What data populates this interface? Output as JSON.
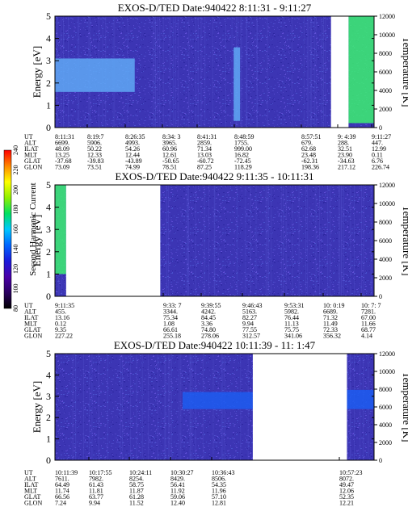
{
  "chart_data": [
    {
      "type": "heatmap",
      "title": "EXOS-D/TED   Date:940422   8:11:31 - 9:11:27",
      "ylabel_left": "Energy [eV]",
      "ylabel_right": "Temperature [K]",
      "ylim": [
        0,
        5
      ],
      "yticks": [
        0,
        1,
        2,
        3,
        4,
        5
      ],
      "y2lim": [
        0,
        12000
      ],
      "y2ticks": [
        0,
        2000,
        4000,
        6000,
        8000,
        10000,
        12000
      ],
      "data_gaps": [
        [
          0.865,
          0.92
        ]
      ],
      "features": [
        {
          "name": "band",
          "x": [
            0.0,
            0.25
          ],
          "y": [
            1.6,
            3.1
          ],
          "level": "light-blue"
        },
        {
          "name": "streak",
          "x": [
            0.56,
            0.58
          ],
          "y": [
            0.3,
            3.6
          ],
          "level": "light-blue"
        },
        {
          "name": "hot",
          "x": [
            0.92,
            1.0
          ],
          "y": [
            0.2,
            5.0
          ],
          "level": "green"
        }
      ],
      "rows": [
        {
          "label": "UT",
          "values": [
            "8:11:31",
            "8:19:7",
            "8:26:35",
            "8:34: 3",
            "8:41:31",
            "8:48:59",
            "",
            "8:57:51",
            "9: 4:39",
            "9:11:27"
          ]
        },
        {
          "label": "ALT",
          "values": [
            "6699.",
            "5906.",
            "4993.",
            "3965.",
            "2859.",
            "1755.",
            "",
            "679.",
            "288.",
            "447."
          ]
        },
        {
          "label": "ILAT",
          "values": [
            "48.09",
            "50.22",
            "54.26",
            "60.96",
            "71.34",
            "999.00",
            "",
            "62.68",
            "32.51",
            "12.99"
          ]
        },
        {
          "label": "MLT",
          "values": [
            "13.25",
            "12.33",
            "12.44",
            "12.61",
            "13.03",
            "16.82",
            "",
            "23.48",
            "23.90",
            "0.11"
          ]
        },
        {
          "label": "GLAT",
          "values": [
            "-37.68",
            "-39.83",
            "-43.89",
            "-50.65",
            "-60.72",
            "-72.45",
            "",
            "-62.31",
            "-34.63",
            "6.76"
          ]
        },
        {
          "label": "GLON",
          "values": [
            "73.09",
            "73.51",
            "74.99",
            "78.51",
            "87.25",
            "118.29",
            "",
            "198.36",
            "217.12",
            "226.74"
          ]
        }
      ]
    },
    {
      "type": "heatmap",
      "title": "EXOS-D/TED   Date:940422   9:11:35 - 10:11:31",
      "ylabel_left": "Energy [eV]",
      "ylabel_right": "Temperature [K]",
      "ylim": [
        0,
        5
      ],
      "yticks": [
        0,
        1,
        2,
        3,
        4,
        5
      ],
      "y2lim": [
        0,
        12000
      ],
      "y2ticks": [
        0,
        2000,
        4000,
        6000,
        8000,
        10000,
        12000
      ],
      "data_gaps": [
        [
          0.035,
          0.33
        ]
      ],
      "features": [
        {
          "name": "green-strip",
          "x": [
            0.0,
            0.035
          ],
          "y": [
            1.0,
            5.0
          ],
          "level": "green"
        }
      ],
      "rows": [
        {
          "label": "UT",
          "values": [
            "9:11:35",
            "",
            "",
            "9:33: 7",
            "9:39:55",
            "9:46:43",
            "9:53:31",
            "10: 0:19",
            "10: 7: 7"
          ]
        },
        {
          "label": "ALT",
          "values": [
            "455.",
            "",
            "",
            "3344.",
            "4242.",
            "5163.",
            "5982.",
            "6689.",
            "7281."
          ]
        },
        {
          "label": "ILAT",
          "values": [
            "13.16",
            "",
            "",
            "75.34",
            "84.45",
            "82.27",
            "76.44",
            "71.32",
            "67.00"
          ]
        },
        {
          "label": "MLT",
          "values": [
            "0.12",
            "",
            "",
            "1.08",
            "3.36",
            "9.94",
            "11.13",
            "11.49",
            "11.66"
          ]
        },
        {
          "label": "GLAT",
          "values": [
            "9.35",
            "",
            "",
            "66.61",
            "74.80",
            "77.55",
            "75.75",
            "72.33",
            "68.77"
          ]
        },
        {
          "label": "GLON",
          "values": [
            "227.22",
            "",
            "",
            "255.18",
            "278.06",
            "312.57",
            "341.06",
            "356.32",
            "4.14"
          ]
        }
      ]
    },
    {
      "type": "heatmap",
      "title": "EXOS-D/TED   Date:940422   10:11:39 - 11: 1:47",
      "ylabel_left": "Energy [eV]",
      "ylabel_right": "Temperature [K]",
      "ylim": [
        0,
        5
      ],
      "yticks": [
        0,
        1,
        2,
        3,
        4,
        5
      ],
      "y2lim": [
        0,
        12000
      ],
      "y2ticks": [
        0,
        2000,
        4000,
        6000,
        8000,
        10000,
        12000
      ],
      "data_gaps": [
        [
          0.62,
          0.915
        ]
      ],
      "features": [
        {
          "name": "band",
          "x": [
            0.4,
            0.62
          ],
          "y": [
            2.4,
            3.2
          ],
          "level": "blue"
        },
        {
          "name": "band-end",
          "x": [
            0.915,
            1.0
          ],
          "y": [
            2.4,
            3.3
          ],
          "level": "blue"
        }
      ],
      "rows": [
        {
          "label": "UT",
          "values": [
            "10:11:39",
            "10:17:55",
            "10:24:11",
            "10:30:27",
            "10:36:43",
            "",
            "",
            "10:57:23"
          ]
        },
        {
          "label": "ALT",
          "values": [
            "7611.",
            "7982.",
            "8254.",
            "8429.",
            "8506.",
            "",
            "",
            "8072."
          ]
        },
        {
          "label": "ILAT",
          "values": [
            "64.49",
            "61.43",
            "58.75",
            "56.41",
            "54.35",
            "",
            "",
            "49.47"
          ]
        },
        {
          "label": "MLT",
          "values": [
            "11.74",
            "11.81",
            "11.87",
            "11.92",
            "11.96",
            "",
            "",
            "12.06"
          ]
        },
        {
          "label": "GLAT",
          "values": [
            "66.56",
            "63.77",
            "61.28",
            "59.06",
            "57.10",
            "",
            "",
            "52.35"
          ]
        },
        {
          "label": "GLON",
          "values": [
            "7.24",
            "9.94",
            "11.52",
            "12.40",
            "12.81",
            "",
            "",
            "12.21"
          ]
        }
      ]
    }
  ],
  "colorbar": {
    "label": "Second Harmonic Current",
    "ticks": [
      "80",
      "100",
      "120",
      "140",
      "160",
      "180",
      "200",
      "220",
      "240"
    ],
    "colors": [
      "#000000",
      "#2a0060",
      "#4a00a8",
      "#1a1adc",
      "#0066ff",
      "#00c8ff",
      "#00e060",
      "#90f000",
      "#ffff00",
      "#ff8800",
      "#ff0000"
    ]
  }
}
